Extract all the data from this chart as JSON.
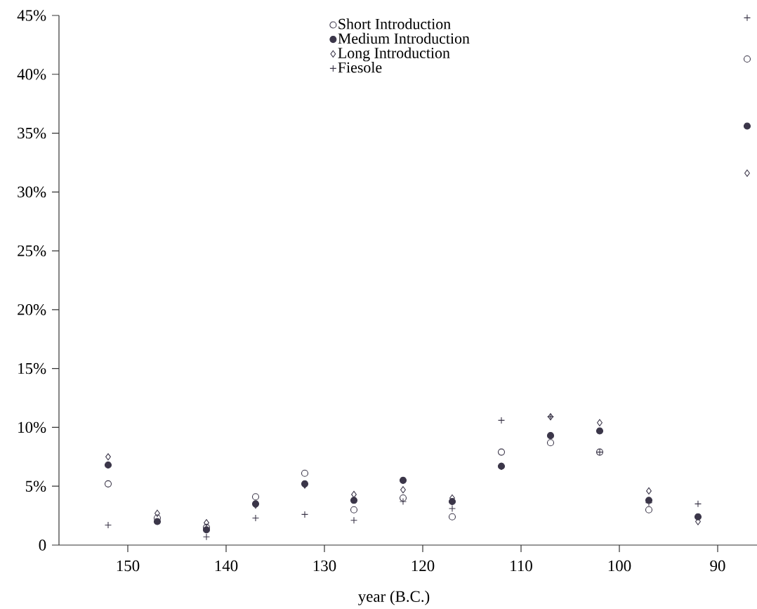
{
  "chart_data": {
    "type": "scatter",
    "xlabel": "year (B.C.)",
    "x": [
      152,
      147,
      142,
      137,
      132,
      127,
      122,
      117,
      112,
      107,
      102,
      97,
      92,
      87
    ],
    "series": [
      {
        "name": "Short Introduction",
        "color": "#3b3649",
        "marker": "circle",
        "values": [
          5.2,
          2.3,
          1.5,
          4.1,
          6.1,
          3.0,
          4.0,
          2.4,
          7.9,
          8.7,
          7.9,
          3.0,
          null,
          41.3
        ]
      },
      {
        "name": "Medium Introduction",
        "color": "#3b3649",
        "marker": "circle",
        "values": [
          6.8,
          2.0,
          1.3,
          3.5,
          5.2,
          3.8,
          5.5,
          3.7,
          6.7,
          9.3,
          9.7,
          3.8,
          2.4,
          35.6
        ]
      },
      {
        "name": "Long Introduction",
        "color": "#3b3649",
        "marker": "diamond",
        "values": [
          7.5,
          2.7,
          1.9,
          3.4,
          5.1,
          4.3,
          4.7,
          4.0,
          6.7,
          10.9,
          10.4,
          4.6,
          2.0,
          31.6
        ]
      },
      {
        "name": "Fiesole",
        "color": "#3b3649",
        "marker": "cross",
        "values": [
          1.7,
          null,
          0.7,
          2.3,
          2.6,
          2.1,
          3.7,
          3.1,
          10.6,
          10.9,
          7.9,
          3.6,
          3.5,
          44.8
        ]
      }
    ],
    "xlim": [
      157,
      86
    ],
    "ylim": [
      0,
      45
    ],
    "xticks": [
      150,
      140,
      130,
      120,
      110,
      100,
      90
    ],
    "yticks": [
      0,
      {
        "value": 5,
        "label": "5%"
      },
      {
        "value": 10,
        "label": "10%"
      },
      {
        "value": 15,
        "label": "15%"
      },
      {
        "value": 20,
        "label": "20%"
      },
      {
        "value": 25,
        "label": "25%"
      },
      {
        "value": 30,
        "label": "30%"
      },
      {
        "value": 35,
        "label": "35%"
      },
      {
        "value": 40,
        "label": "40%"
      },
      {
        "value": 45,
        "label": "45%"
      }
    ],
    "grid": false,
    "legend": "top"
  }
}
